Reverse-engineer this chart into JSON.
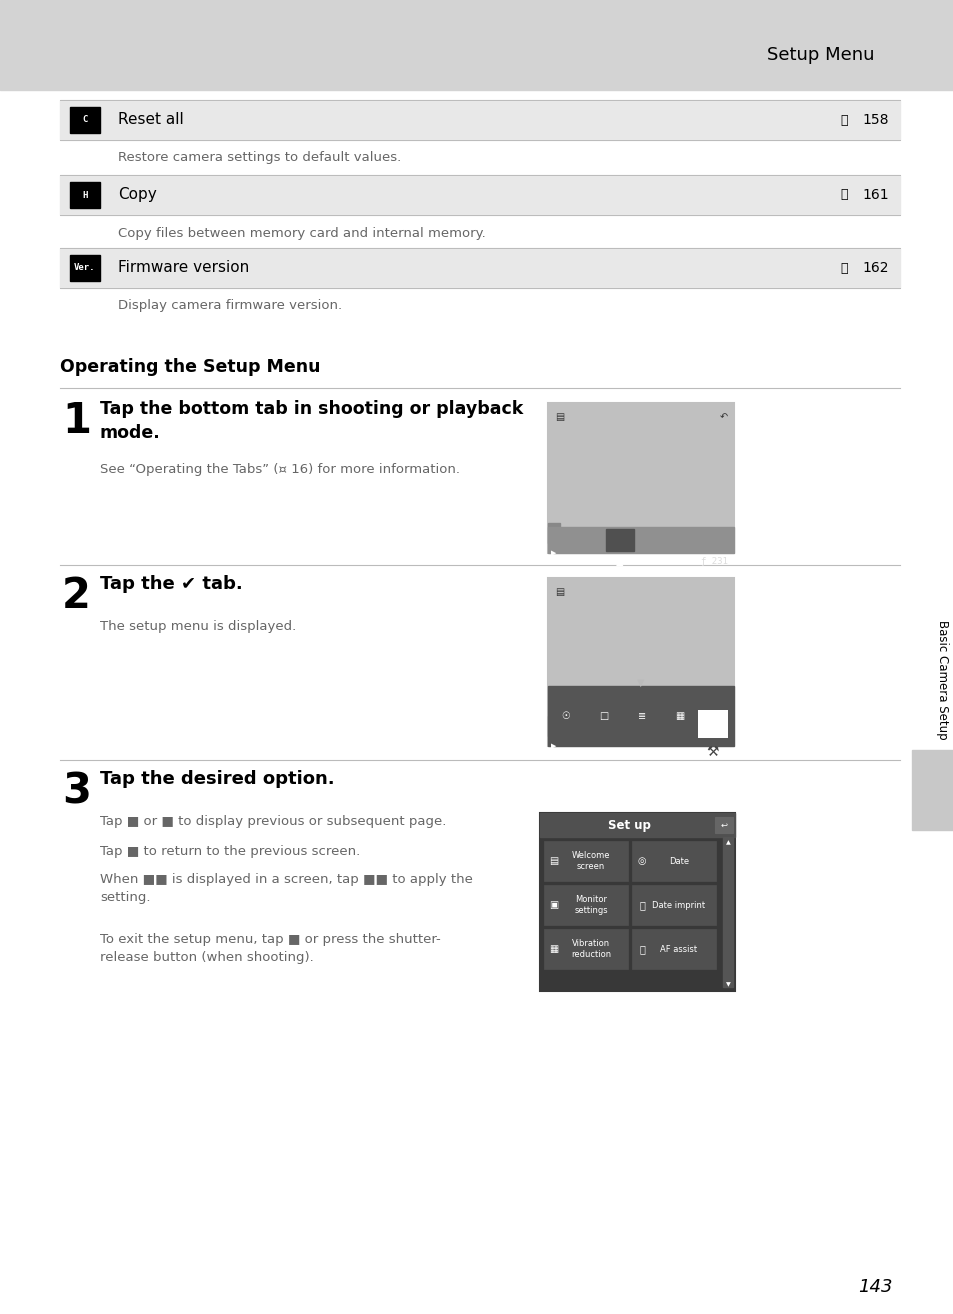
{
  "page_bg": "#ffffff",
  "header_bg": "#d3d3d3",
  "header_text": "Setup Menu",
  "table_row_bg": "#e8e8e8",
  "table_rows": [
    {
      "icon": "C",
      "title": "Reset all",
      "page": "158",
      "desc": "Restore camera settings to default values."
    },
    {
      "icon": "H",
      "title": "Copy",
      "page": "161",
      "desc": "Copy files between memory card and internal memory."
    },
    {
      "icon": "Ver.",
      "title": "Firmware version",
      "page": "162",
      "desc": "Display camera firmware version."
    }
  ],
  "section_title": "Operating the Setup Menu",
  "sidebar_text": "Basic Camera Setup",
  "page_num": "143",
  "divider_color": "#bbbbbb",
  "text_dark": "#000000",
  "text_mid": "#444444",
  "text_light": "#666666"
}
